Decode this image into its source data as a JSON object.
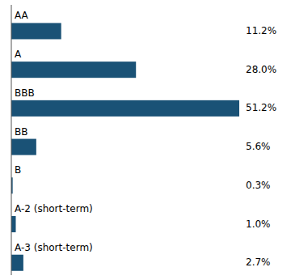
{
  "chart_data": {
    "type": "bar",
    "orientation": "horizontal",
    "categories": [
      "AA",
      "A",
      "BBB",
      "BB",
      "B",
      "A-2 (short-term)",
      "A-3 (short-term)"
    ],
    "values": [
      11.2,
      28.0,
      51.2,
      5.6,
      0.3,
      1.0,
      2.7
    ],
    "value_labels": [
      "11.2%",
      "28.0%",
      "51.2%",
      "5.6%",
      "0.3%",
      "1.0%",
      "2.7%"
    ],
    "data_labels": true,
    "color": "#1a5276",
    "xlim": [
      0,
      51.2
    ],
    "tick_labels": false
  }
}
